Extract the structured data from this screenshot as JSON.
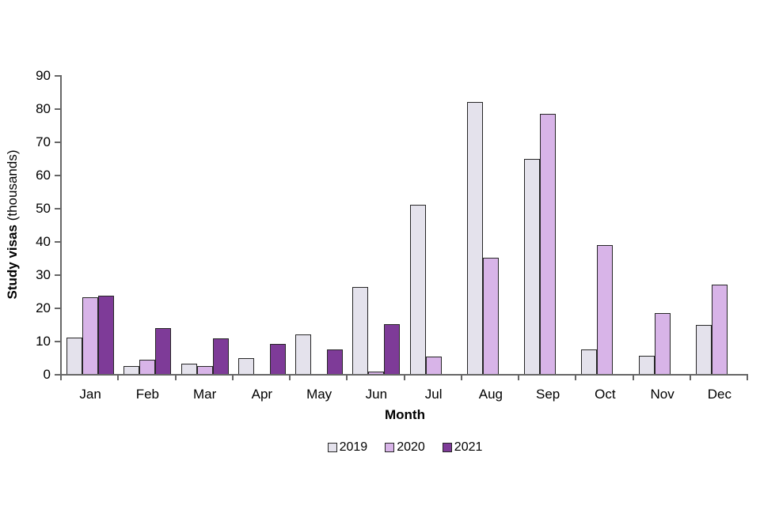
{
  "figure": {
    "y_axis_title_bold": "Study visas",
    "y_axis_title_unit": " (thousands)"
  },
  "chart_data": {
    "type": "bar",
    "title": "",
    "xlabel": "Month",
    "ylabel": "Study visas (thousands)",
    "categories": [
      "Jan",
      "Feb",
      "Mar",
      "Apr",
      "May",
      "Jun",
      "Jul",
      "Aug",
      "Sep",
      "Oct",
      "Nov",
      "Dec"
    ],
    "series": [
      {
        "name": "2019",
        "color": "#e4e2ec",
        "values": [
          11,
          2.5,
          3,
          4.8,
          12,
          26.2,
          51,
          82,
          64.7,
          7.4,
          5.5,
          14.7
        ]
      },
      {
        "name": "2020",
        "color": "#d8b4e8",
        "values": [
          23,
          4.3,
          2.4,
          0,
          0,
          0.8,
          5.3,
          35,
          78.3,
          38.8,
          18.3,
          26.8
        ]
      },
      {
        "name": "2021",
        "color": "#7e3b98",
        "values": [
          23.5,
          13.7,
          10.8,
          9,
          7.3,
          15,
          0,
          0,
          0,
          0,
          0,
          0
        ]
      }
    ],
    "ylim": [
      0,
      90
    ],
    "yticks": [
      0,
      10,
      20,
      30,
      40,
      50,
      60,
      70,
      80,
      90
    ],
    "grid": false,
    "legend_position": "bottom",
    "bar_border_color": "#262626",
    "axis_color": "#666666"
  }
}
